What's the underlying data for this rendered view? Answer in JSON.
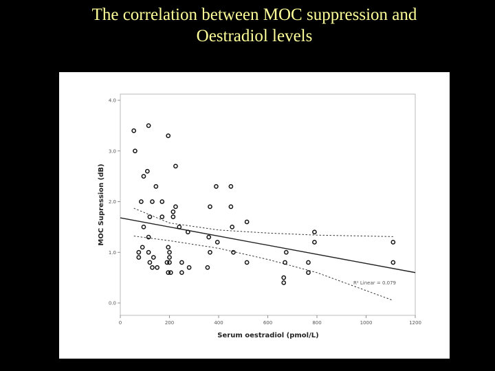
{
  "slide": {
    "title_line1": "The correlation between MOC suppression and",
    "title_line2": "Oestradiol levels"
  },
  "colors": {
    "background": "#000000",
    "title": "#ffff99",
    "panel": "#ffffff",
    "ink": "#222222"
  },
  "chart_data": {
    "type": "scatter",
    "xlabel": "Serum oestradiol (pmol/L)",
    "ylabel": "MOC Supression (dB)",
    "xlim": [
      0,
      1200
    ],
    "ylim": [
      0,
      4.0
    ],
    "x_ticks": [
      0,
      200,
      400,
      600,
      800,
      1000,
      1200
    ],
    "x_tick_labels": [
      "0",
      "200",
      "400",
      "600",
      "800",
      "1000",
      "1200"
    ],
    "y_ticks": [
      0,
      1,
      2,
      3,
      4
    ],
    "y_tick_labels": [
      "0.0",
      "1.0",
      "2.0",
      "3.0",
      "4.0"
    ],
    "grid": false,
    "annotation": "R² Linear = 0.079",
    "points": [
      [
        55,
        3.4
      ],
      [
        115,
        3.5
      ],
      [
        195,
        3.3
      ],
      [
        60,
        3.0
      ],
      [
        225,
        2.7
      ],
      [
        110,
        2.6
      ],
      [
        95,
        2.5
      ],
      [
        145,
        2.3
      ],
      [
        390,
        2.3
      ],
      [
        450,
        2.3
      ],
      [
        85,
        2.0
      ],
      [
        130,
        2.0
      ],
      [
        170,
        2.0
      ],
      [
        365,
        1.9
      ],
      [
        450,
        1.9
      ],
      [
        225,
        1.9
      ],
      [
        215,
        1.8
      ],
      [
        120,
        1.7
      ],
      [
        170,
        1.7
      ],
      [
        215,
        1.7
      ],
      [
        515,
        1.6
      ],
      [
        95,
        1.5
      ],
      [
        240,
        1.5
      ],
      [
        455,
        1.5
      ],
      [
        275,
        1.4
      ],
      [
        790,
        1.4
      ],
      [
        360,
        1.3
      ],
      [
        115,
        1.3
      ],
      [
        395,
        1.2
      ],
      [
        790,
        1.2
      ],
      [
        1110,
        1.2
      ],
      [
        90,
        1.1
      ],
      [
        195,
        1.1
      ],
      [
        75,
        1.0
      ],
      [
        115,
        1.0
      ],
      [
        200,
        1.0
      ],
      [
        460,
        1.0
      ],
      [
        675,
        1.0
      ],
      [
        365,
        1.0
      ],
      [
        75,
        0.9
      ],
      [
        135,
        0.9
      ],
      [
        200,
        0.9
      ],
      [
        120,
        0.8
      ],
      [
        190,
        0.8
      ],
      [
        200,
        0.8
      ],
      [
        250,
        0.8
      ],
      [
        515,
        0.8
      ],
      [
        670,
        0.8
      ],
      [
        765,
        0.8
      ],
      [
        1110,
        0.8
      ],
      [
        130,
        0.7
      ],
      [
        150,
        0.7
      ],
      [
        280,
        0.7
      ],
      [
        355,
        0.7
      ],
      [
        195,
        0.6
      ],
      [
        205,
        0.6
      ],
      [
        250,
        0.6
      ],
      [
        765,
        0.6
      ],
      [
        665,
        0.5
      ],
      [
        665,
        0.4
      ]
    ],
    "fit_line": {
      "x": [
        0,
        1200
      ],
      "y": [
        1.68,
        0.6
      ]
    },
    "ci_upper": {
      "x": [
        55,
        200,
        400,
        600,
        800,
        1110
      ],
      "y": [
        1.87,
        1.58,
        1.44,
        1.38,
        1.34,
        1.31
      ]
    },
    "ci_lower": {
      "x": [
        55,
        200,
        400,
        600,
        800,
        1110
      ],
      "y": [
        1.32,
        1.23,
        1.08,
        0.86,
        0.6,
        0.05
      ]
    }
  }
}
